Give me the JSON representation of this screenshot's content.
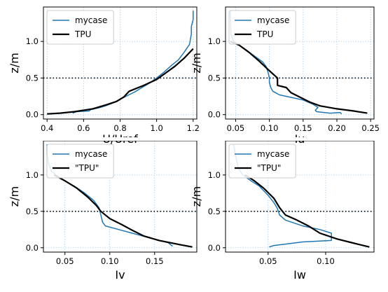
{
  "chart_data": [
    {
      "type": "line",
      "xlabel": "U/Uref",
      "ylabel": "z/m",
      "xlim": [
        0.38,
        1.22
      ],
      "ylim": [
        -0.06,
        1.47
      ],
      "xticks": [
        0.4,
        0.6,
        0.8,
        1.0,
        1.2
      ],
      "xtick_labels": [
        "0.4",
        "0.6",
        "0.8",
        "1.0",
        "1.2"
      ],
      "yticks": [
        0.0,
        0.5,
        1.0
      ],
      "ytick_labels": [
        "0.0",
        "0.5",
        "1.0"
      ],
      "hline": 0.5,
      "grid": true,
      "legend": "top-left",
      "series": [
        {
          "name": "mycase",
          "color": "#1f77b4",
          "x": [
            0.54,
            0.56,
            0.63,
            0.64,
            0.68,
            0.72,
            0.76,
            0.8,
            0.84,
            0.88,
            0.92,
            0.96,
            1.0,
            1.04,
            1.08,
            1.12,
            1.15,
            1.18,
            1.19,
            1.19,
            1.2,
            1.2
          ],
          "y": [
            0.02,
            0.04,
            0.05,
            0.07,
            0.09,
            0.12,
            0.16,
            0.21,
            0.26,
            0.31,
            0.37,
            0.43,
            0.5,
            0.58,
            0.67,
            0.75,
            0.85,
            0.96,
            1.1,
            1.2,
            1.3,
            1.42
          ]
        },
        {
          "name": "TPU",
          "color": "#000000",
          "x": [
            0.4,
            0.47,
            0.55,
            0.65,
            0.72,
            0.78,
            0.82,
            0.85,
            0.93,
            1.0,
            1.05,
            1.1,
            1.15,
            1.2
          ],
          "y": [
            0.01,
            0.02,
            0.04,
            0.08,
            0.13,
            0.18,
            0.24,
            0.32,
            0.4,
            0.48,
            0.57,
            0.66,
            0.77,
            0.9
          ]
        }
      ]
    },
    {
      "type": "line",
      "xlabel": "Iu",
      "ylabel": "z/m",
      "xlim": [
        0.035,
        0.255
      ],
      "ylim": [
        -0.06,
        1.47
      ],
      "xticks": [
        0.05,
        0.1,
        0.15,
        0.2,
        0.25
      ],
      "xtick_labels": [
        "0.05",
        "0.10",
        "0.15",
        "0.20",
        "0.25"
      ],
      "yticks": [
        0.0,
        0.5,
        1.0
      ],
      "ytick_labels": [
        "0.0",
        "0.5",
        "1.0"
      ],
      "hline": 0.5,
      "grid": true,
      "legend": "top-left",
      "series": [
        {
          "name": "mycase",
          "color": "#1f77b4",
          "x": [
            0.042,
            0.043,
            0.047,
            0.06,
            0.075,
            0.09,
            0.095,
            0.098,
            0.1,
            0.1,
            0.102,
            0.105,
            0.115,
            0.13,
            0.15,
            0.165,
            0.172,
            0.168,
            0.17,
            0.19,
            0.205,
            0.207
          ],
          "y": [
            1.42,
            1.1,
            1.0,
            0.92,
            0.82,
            0.72,
            0.66,
            0.58,
            0.5,
            0.44,
            0.37,
            0.32,
            0.27,
            0.24,
            0.2,
            0.14,
            0.1,
            0.06,
            0.04,
            0.02,
            0.03,
            0.01
          ]
        },
        {
          "name": "TPU",
          "color": "#000000",
          "x": [
            0.042,
            0.055,
            0.07,
            0.085,
            0.1,
            0.112,
            0.112,
            0.125,
            0.132,
            0.145,
            0.16,
            0.175,
            0.2,
            0.225,
            0.245
          ],
          "y": [
            1.0,
            0.95,
            0.85,
            0.73,
            0.6,
            0.5,
            0.4,
            0.37,
            0.3,
            0.24,
            0.17,
            0.12,
            0.08,
            0.05,
            0.02
          ]
        }
      ]
    },
    {
      "type": "line",
      "xlabel": "Iv",
      "ylabel": "z/m",
      "xlim": [
        0.026,
        0.197
      ],
      "ylim": [
        -0.06,
        1.47
      ],
      "xticks": [
        0.05,
        0.1,
        0.15
      ],
      "xtick_labels": [
        "0.05",
        "0.10",
        "0.15"
      ],
      "yticks": [
        0.0,
        0.5,
        1.0
      ],
      "ytick_labels": [
        "0.0",
        "0.5",
        "1.0"
      ],
      "hline": 0.5,
      "grid": true,
      "legend": "top-left",
      "series": [
        {
          "name": "mycase",
          "color": "#1f77b4",
          "x": [
            0.03,
            0.03,
            0.032,
            0.035,
            0.045,
            0.06,
            0.072,
            0.082,
            0.088,
            0.09,
            0.092,
            0.095,
            0.11,
            0.125,
            0.14,
            0.155,
            0.165,
            0.168,
            0.17
          ],
          "y": [
            1.42,
            1.28,
            1.15,
            1.05,
            0.95,
            0.85,
            0.75,
            0.65,
            0.55,
            0.45,
            0.35,
            0.3,
            0.25,
            0.2,
            0.15,
            0.1,
            0.07,
            0.04,
            0.02
          ]
        },
        {
          "name": "\"TPU\"",
          "color": "#000000",
          "x": [
            0.038,
            0.05,
            0.063,
            0.075,
            0.085,
            0.09,
            0.1,
            0.113,
            0.125,
            0.138,
            0.155,
            0.175,
            0.192
          ],
          "y": [
            1.0,
            0.92,
            0.82,
            0.7,
            0.58,
            0.5,
            0.4,
            0.32,
            0.24,
            0.16,
            0.1,
            0.05,
            0.01
          ]
        }
      ]
    },
    {
      "type": "line",
      "xlabel": "Iw",
      "ylabel": "z/m",
      "xlim": [
        0.013,
        0.142
      ],
      "ylim": [
        -0.06,
        1.47
      ],
      "xticks": [
        0.05,
        0.1
      ],
      "xtick_labels": [
        "0.05",
        "0.10"
      ],
      "yticks": [
        0.0,
        0.5,
        1.0
      ],
      "ytick_labels": [
        "0.0",
        "0.5",
        "1.0"
      ],
      "hline": 0.5,
      "grid": true,
      "legend": "top-left",
      "series": [
        {
          "name": "mycase",
          "color": "#1f77b4",
          "x": [
            0.02,
            0.022,
            0.024,
            0.028,
            0.035,
            0.042,
            0.05,
            0.055,
            0.058,
            0.06,
            0.065,
            0.08,
            0.095,
            0.105,
            0.105,
            0.08,
            0.065,
            0.055,
            0.051
          ],
          "y": [
            1.42,
            1.25,
            1.1,
            1.0,
            0.92,
            0.85,
            0.72,
            0.62,
            0.54,
            0.45,
            0.38,
            0.3,
            0.25,
            0.2,
            0.1,
            0.08,
            0.05,
            0.03,
            0.01
          ]
        },
        {
          "name": "\"TPU\"",
          "color": "#000000",
          "x": [
            0.03,
            0.038,
            0.046,
            0.055,
            0.06,
            0.065,
            0.075,
            0.085,
            0.095,
            0.11,
            0.125,
            0.138
          ],
          "y": [
            1.0,
            0.92,
            0.82,
            0.68,
            0.55,
            0.45,
            0.38,
            0.3,
            0.2,
            0.12,
            0.06,
            0.01
          ]
        }
      ]
    }
  ]
}
